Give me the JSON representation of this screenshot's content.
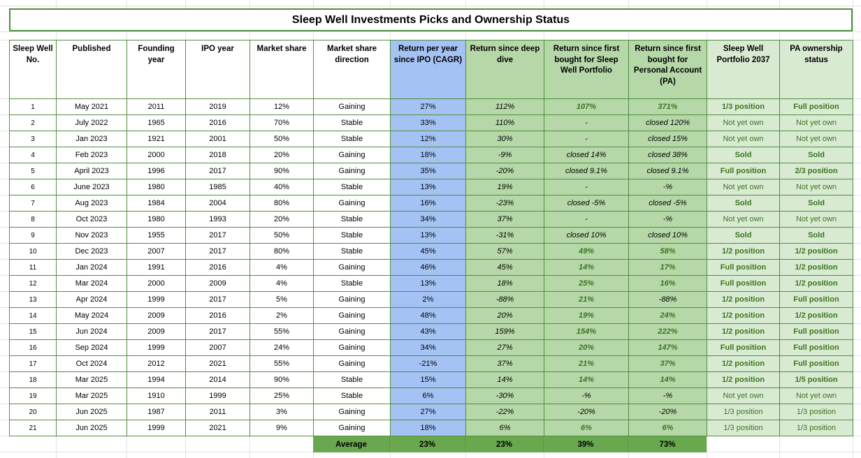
{
  "title": "Sleep Well Investments Picks and Ownership Status",
  "columns": [
    "Sleep Well No.",
    "Published",
    "Founding year",
    "IPO year",
    "Market share",
    "Market share direction",
    "Return per year since IPO (CAGR)",
    "Return since deep dive",
    "Return since first bought for Sleep Well Portfolio",
    "Return since first bought for Personal Account (PA)",
    "Sleep Well Portfolio 2037",
    "PA ownership status"
  ],
  "rows": [
    {
      "no": "1",
      "published": "May 2021",
      "founding": "2011",
      "ipo": "2019",
      "share": "12%",
      "direction": "Gaining",
      "cagr": "27%",
      "deep_dive": "112%",
      "swp_return": "107%",
      "swp_return_green": true,
      "pa_return": "371%",
      "pa_return_green": true,
      "portfolio_2037": "1/3 position",
      "portfolio_2037_bold": true,
      "pa_status": "Full position",
      "pa_status_bold": true
    },
    {
      "no": "2",
      "published": "July 2022",
      "founding": "1965",
      "ipo": "2016",
      "share": "70%",
      "direction": "Stable",
      "cagr": "33%",
      "deep_dive": "110%",
      "swp_return": "-",
      "swp_return_green": false,
      "pa_return": "closed 120%",
      "pa_return_green": false,
      "portfolio_2037": "Not yet own",
      "portfolio_2037_bold": false,
      "pa_status": "Not yet own",
      "pa_status_bold": false
    },
    {
      "no": "3",
      "published": "Jan 2023",
      "founding": "1921",
      "ipo": "2001",
      "share": "50%",
      "direction": "Stable",
      "cagr": "12%",
      "deep_dive": "30%",
      "swp_return": "-",
      "swp_return_green": false,
      "pa_return": "closed 15%",
      "pa_return_green": false,
      "portfolio_2037": "Not yet own",
      "portfolio_2037_bold": false,
      "pa_status": "Not yet own",
      "pa_status_bold": false
    },
    {
      "no": "4",
      "published": "Feb 2023",
      "founding": "2000",
      "ipo": "2018",
      "share": "20%",
      "direction": "Gaining",
      "cagr": "18%",
      "deep_dive": "-9%",
      "swp_return": "closed 14%",
      "swp_return_green": false,
      "pa_return": "closed 38%",
      "pa_return_green": false,
      "portfolio_2037": "Sold",
      "portfolio_2037_bold": true,
      "pa_status": "Sold",
      "pa_status_bold": true
    },
    {
      "no": "5",
      "published": "April 2023",
      "founding": "1996",
      "ipo": "2017",
      "share": "90%",
      "direction": "Gaining",
      "cagr": "35%",
      "deep_dive": "-20%",
      "swp_return": "closed 9.1%",
      "swp_return_green": false,
      "pa_return": "closed 9.1%",
      "pa_return_green": false,
      "portfolio_2037": "Full position",
      "portfolio_2037_bold": true,
      "pa_status": "2/3 position",
      "pa_status_bold": true
    },
    {
      "no": "6",
      "published": "June 2023",
      "founding": "1980",
      "ipo": "1985",
      "share": "40%",
      "direction": "Stable",
      "cagr": "13%",
      "deep_dive": "19%",
      "swp_return": "-",
      "swp_return_green": false,
      "pa_return": "-%",
      "pa_return_green": false,
      "portfolio_2037": "Not yet own",
      "portfolio_2037_bold": false,
      "pa_status": "Not yet own",
      "pa_status_bold": false
    },
    {
      "no": "7",
      "published": "Aug 2023",
      "founding": "1984",
      "ipo": "2004",
      "share": "80%",
      "direction": "Gaining",
      "cagr": "16%",
      "deep_dive": "-23%",
      "swp_return": "closed -5%",
      "swp_return_green": false,
      "pa_return": "closed -5%",
      "pa_return_green": false,
      "portfolio_2037": "Sold",
      "portfolio_2037_bold": true,
      "pa_status": "Sold",
      "pa_status_bold": true
    },
    {
      "no": "8",
      "published": "Oct 2023",
      "founding": "1980",
      "ipo": "1993",
      "share": "20%",
      "direction": "Stable",
      "cagr": "34%",
      "deep_dive": "37%",
      "swp_return": "-",
      "swp_return_green": false,
      "pa_return": "-%",
      "pa_return_green": false,
      "portfolio_2037": "Not yet own",
      "portfolio_2037_bold": false,
      "pa_status": "Not yet own",
      "pa_status_bold": false
    },
    {
      "no": "9",
      "published": "Nov 2023",
      "founding": "1955",
      "ipo": "2017",
      "share": "50%",
      "direction": "Stable",
      "cagr": "13%",
      "deep_dive": "-31%",
      "swp_return": "closed 10%",
      "swp_return_green": false,
      "pa_return": "closed 10%",
      "pa_return_green": false,
      "portfolio_2037": "Sold",
      "portfolio_2037_bold": true,
      "pa_status": "Sold",
      "pa_status_bold": true
    },
    {
      "no": "10",
      "published": "Dec 2023",
      "founding": "2007",
      "ipo": "2017",
      "share": "80%",
      "direction": "Stable",
      "cagr": "45%",
      "deep_dive": "57%",
      "swp_return": "49%",
      "swp_return_green": true,
      "pa_return": "58%",
      "pa_return_green": true,
      "portfolio_2037": "1/2 position",
      "portfolio_2037_bold": true,
      "pa_status": "1/2 position",
      "pa_status_bold": true
    },
    {
      "no": "11",
      "published": "Jan 2024",
      "founding": "1991",
      "ipo": "2016",
      "share": "4%",
      "direction": "Gaining",
      "cagr": "46%",
      "deep_dive": "45%",
      "swp_return": "14%",
      "swp_return_green": true,
      "pa_return": "17%",
      "pa_return_green": true,
      "portfolio_2037": "Full position",
      "portfolio_2037_bold": true,
      "pa_status": "1/2 position",
      "pa_status_bold": true
    },
    {
      "no": "12",
      "published": "Mar 2024",
      "founding": "2000",
      "ipo": "2009",
      "share": "4%",
      "direction": "Stable",
      "cagr": "13%",
      "deep_dive": "18%",
      "swp_return": "25%",
      "swp_return_green": true,
      "pa_return": "16%",
      "pa_return_green": true,
      "portfolio_2037": "Full position",
      "portfolio_2037_bold": true,
      "pa_status": "1/2 position",
      "pa_status_bold": true
    },
    {
      "no": "13",
      "published": "Apr 2024",
      "founding": "1999",
      "ipo": "2017",
      "share": "5%",
      "direction": "Gaining",
      "cagr": "2%",
      "deep_dive": "-88%",
      "swp_return": "21%",
      "swp_return_green": true,
      "pa_return": "-88%",
      "pa_return_green": false,
      "portfolio_2037": "1/2 position",
      "portfolio_2037_bold": true,
      "pa_status": "Full position",
      "pa_status_bold": true
    },
    {
      "no": "14",
      "published": "May 2024",
      "founding": "2009",
      "ipo": "2016",
      "share": "2%",
      "direction": "Gaining",
      "cagr": "48%",
      "deep_dive": "20%",
      "swp_return": "19%",
      "swp_return_green": true,
      "pa_return": "24%",
      "pa_return_green": true,
      "portfolio_2037": "1/2 position",
      "portfolio_2037_bold": true,
      "pa_status": "1/2 position",
      "pa_status_bold": true
    },
    {
      "no": "15",
      "published": "Jun 2024",
      "founding": "2009",
      "ipo": "2017",
      "share": "55%",
      "direction": "Gaining",
      "cagr": "43%",
      "deep_dive": "159%",
      "swp_return": "154%",
      "swp_return_green": true,
      "pa_return": "222%",
      "pa_return_green": true,
      "portfolio_2037": "1/2 position",
      "portfolio_2037_bold": true,
      "pa_status": "Full position",
      "pa_status_bold": true
    },
    {
      "no": "16",
      "published": "Sep 2024",
      "founding": "1999",
      "ipo": "2007",
      "share": "24%",
      "direction": "Gaining",
      "cagr": "34%",
      "deep_dive": "27%",
      "swp_return": "20%",
      "swp_return_green": true,
      "pa_return": "147%",
      "pa_return_green": true,
      "portfolio_2037": "Full position",
      "portfolio_2037_bold": true,
      "pa_status": "Full position",
      "pa_status_bold": true
    },
    {
      "no": "17",
      "published": "Oct 2024",
      "founding": "2012",
      "ipo": "2021",
      "share": "55%",
      "direction": "Gaining",
      "cagr": "-21%",
      "deep_dive": "37%",
      "swp_return": "21%",
      "swp_return_green": true,
      "pa_return": "37%",
      "pa_return_green": true,
      "portfolio_2037": "1/2 position",
      "portfolio_2037_bold": true,
      "pa_status": "Full position",
      "pa_status_bold": true
    },
    {
      "no": "18",
      "published": "Mar 2025",
      "founding": "1994",
      "ipo": "2014",
      "share": "90%",
      "direction": "Stable",
      "cagr": "15%",
      "deep_dive": "14%",
      "swp_return": "14%",
      "swp_return_green": true,
      "pa_return": "14%",
      "pa_return_green": true,
      "portfolio_2037": "1/2 position",
      "portfolio_2037_bold": true,
      "pa_status": "1/5 position",
      "pa_status_bold": true
    },
    {
      "no": "19",
      "published": "Mar 2025",
      "founding": "1910",
      "ipo": "1999",
      "share": "25%",
      "direction": "Stable",
      "cagr": "6%",
      "deep_dive": "-30%",
      "swp_return": "-%",
      "swp_return_green": false,
      "pa_return": "-%",
      "pa_return_green": false,
      "portfolio_2037": "Not yet own",
      "portfolio_2037_bold": false,
      "pa_status": "Not yet own",
      "pa_status_bold": false
    },
    {
      "no": "20",
      "published": "Jun 2025",
      "founding": "1987",
      "ipo": "2011",
      "share": "3%",
      "direction": "Gaining",
      "cagr": "27%",
      "deep_dive": "-22%",
      "swp_return": "-20%",
      "swp_return_green": false,
      "pa_return": "-20%",
      "pa_return_green": false,
      "portfolio_2037": "1/3 position",
      "portfolio_2037_bold": false,
      "pa_status": "1/3 position",
      "pa_status_bold": false
    },
    {
      "no": "21",
      "published": "Jun 2025",
      "founding": "1999",
      "ipo": "2021",
      "share": "9%",
      "direction": "Gaining",
      "cagr": "18%",
      "deep_dive": "6%",
      "swp_return": "6%",
      "swp_return_green": true,
      "pa_return": "6%",
      "pa_return_green": true,
      "portfolio_2037": "1/3 position",
      "portfolio_2037_bold": false,
      "pa_status": "1/3 position",
      "pa_status_bold": false
    }
  ],
  "average": {
    "label": "Average",
    "cagr": "23%",
    "deep_dive": "23%",
    "swp_return": "39%",
    "pa_return": "73%"
  },
  "colors": {
    "cagr_fill": "#a4c2f4",
    "return_fill": "#b6d7a8",
    "status_fill": "#d9ead3",
    "average_fill": "#6aa84f",
    "table_border": "#4f8f3e",
    "positive_text": "#38761d"
  }
}
